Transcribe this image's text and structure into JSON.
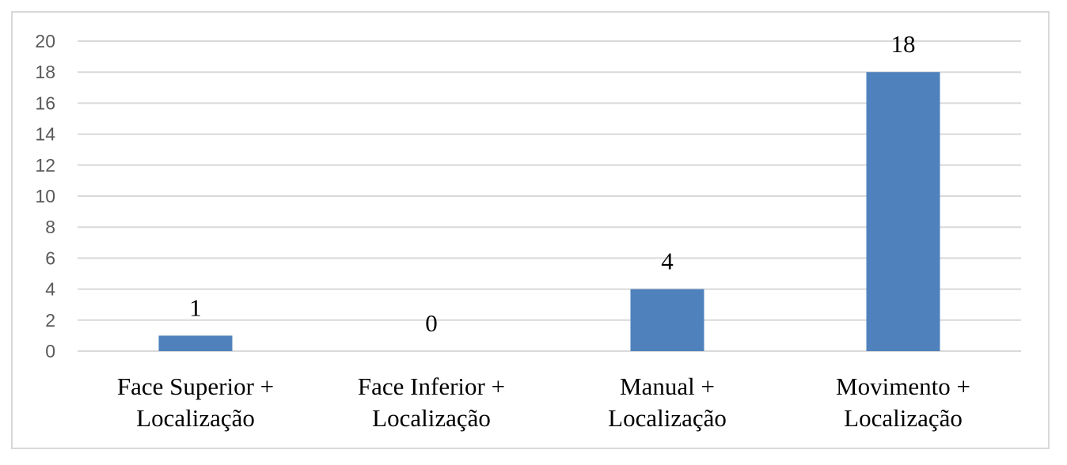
{
  "chart_data": {
    "type": "bar",
    "categories": [
      [
        "Face Superior +",
        "Localização"
      ],
      [
        "Face Inferior +",
        "Localização"
      ],
      [
        "Manual +",
        "Localização"
      ],
      [
        "Movimento +",
        "Localização"
      ]
    ],
    "values": [
      1,
      0,
      4,
      18
    ],
    "data_labels": [
      "1",
      "0",
      "4",
      "18"
    ],
    "ylim": [
      0,
      20
    ],
    "yticks": [
      "0",
      "2",
      "4",
      "6",
      "8",
      "10",
      "12",
      "14",
      "16",
      "18",
      "20"
    ],
    "grid": true,
    "legend": "none",
    "bar_color": "#4f81bd",
    "grid_color": "#d9d9d9"
  }
}
